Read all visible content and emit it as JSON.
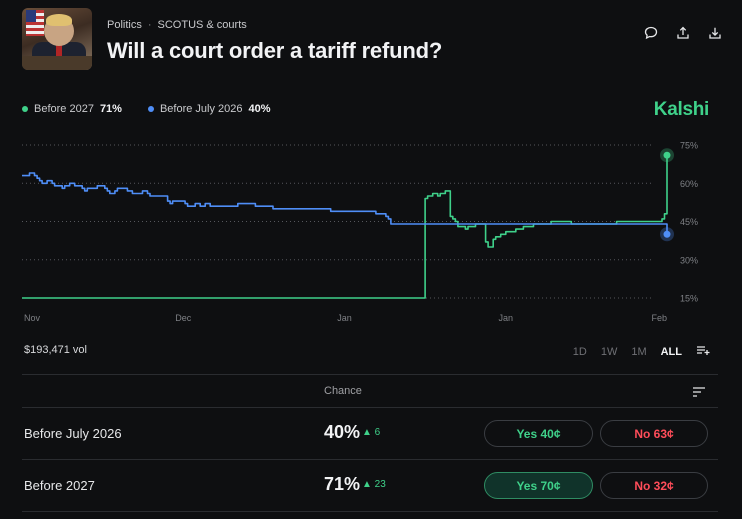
{
  "header": {
    "crumb_category": "Politics",
    "crumb_separator": "·",
    "crumb_subcategory": "SCOTUS & courts",
    "title": "Will a court order a tariff refund?",
    "actions": [
      "comment-icon",
      "share-icon",
      "download-icon"
    ]
  },
  "legend": {
    "items": [
      {
        "label": "Before 2027",
        "value": "71%",
        "color": "#3fd18a"
      },
      {
        "label": "Before July 2026",
        "value": "40%",
        "color": "#4f8ef7"
      }
    ]
  },
  "brand": "Kalshi",
  "chart_data": {
    "type": "line",
    "x_tick_labels": [
      "Nov",
      "Dec",
      "Jan",
      "Jan",
      "Feb"
    ],
    "y_tick_labels": [
      "75%",
      "60%",
      "45%",
      "30%",
      "15%"
    ],
    "ylim": [
      15,
      75
    ],
    "grid": true,
    "legend_position": "top-left",
    "series": [
      {
        "name": "Before 2027",
        "color": "#3fd18a",
        "values": [
          15,
          15,
          15,
          15,
          15,
          15,
          15,
          15,
          15,
          15,
          15,
          15,
          15,
          15,
          15,
          15,
          15,
          15,
          15,
          15,
          15,
          15,
          15,
          15,
          15,
          15,
          15,
          15,
          15,
          15,
          15,
          15,
          15,
          15,
          15,
          15,
          15,
          15,
          15,
          15,
          15,
          15,
          15,
          15,
          15,
          15,
          15,
          15,
          15,
          15,
          15,
          15,
          15,
          15,
          15,
          15,
          15,
          15,
          15,
          15,
          15,
          15,
          15,
          15,
          15,
          15,
          15,
          15,
          15,
          15,
          15,
          15,
          15,
          15,
          15,
          15,
          15,
          15,
          15,
          15,
          15,
          15,
          15,
          15,
          15,
          15,
          15,
          15,
          15,
          15,
          15,
          15,
          15,
          15,
          15,
          15,
          15,
          15,
          15,
          15,
          15,
          15,
          15,
          15,
          15,
          15,
          15,
          15,
          15,
          15,
          15,
          15,
          15,
          15,
          15,
          15,
          15,
          15,
          15,
          15,
          15,
          15,
          15,
          15,
          15,
          15,
          15,
          15,
          15,
          15,
          15,
          15,
          15,
          15,
          15,
          15,
          15,
          15,
          15,
          15,
          15,
          15,
          15,
          15,
          15,
          15,
          15,
          15,
          15,
          15,
          15,
          15,
          15,
          15,
          15,
          15,
          15,
          15,
          15,
          15,
          54,
          55,
          55,
          56,
          56,
          55,
          56,
          56,
          57,
          57,
          47,
          46,
          45,
          43,
          43,
          43,
          42,
          43,
          43,
          43,
          44,
          44,
          44,
          44,
          37,
          35,
          35,
          38,
          39,
          39,
          40,
          40,
          41,
          41,
          41,
          41,
          42,
          42,
          42,
          43,
          43,
          43,
          43,
          44,
          44,
          44,
          44,
          44,
          44,
          44,
          45,
          45,
          45,
          45,
          45,
          45,
          45,
          45,
          44,
          44,
          44,
          44,
          44,
          44,
          44,
          44,
          44,
          44,
          44,
          44,
          44,
          44,
          44,
          44,
          44,
          44,
          45,
          45,
          45,
          45,
          45,
          45,
          45,
          45,
          45,
          45,
          45,
          45,
          45,
          45,
          45,
          45,
          45,
          45,
          46,
          48,
          71
        ]
      },
      {
        "name": "Before July 2026",
        "color": "#4f8ef7",
        "values": [
          63,
          63,
          63,
          64,
          64,
          63,
          62,
          61,
          60,
          60,
          61,
          61,
          60,
          59,
          59,
          59,
          58,
          59,
          59,
          60,
          60,
          59,
          59,
          59,
          58,
          57,
          58,
          58,
          58,
          58,
          59,
          59,
          59,
          58,
          57,
          56,
          56,
          57,
          58,
          58,
          58,
          58,
          57,
          57,
          56,
          56,
          56,
          56,
          57,
          57,
          56,
          55,
          55,
          55,
          55,
          55,
          55,
          55,
          53,
          52,
          53,
          53,
          53,
          53,
          53,
          52,
          51,
          51,
          51,
          52,
          52,
          51,
          51,
          52,
          52,
          51,
          51,
          51,
          51,
          51,
          51,
          51,
          51,
          51,
          51,
          51,
          52,
          52,
          52,
          52,
          52,
          52,
          52,
          51,
          51,
          51,
          51,
          51,
          51,
          51,
          50,
          50,
          50,
          50,
          50,
          50,
          50,
          50,
          50,
          50,
          50,
          50,
          50,
          50,
          50,
          50,
          50,
          50,
          50,
          50,
          50,
          50,
          50,
          49,
          49,
          49,
          49,
          49,
          49,
          49,
          49,
          49,
          49,
          49,
          49,
          49,
          49,
          49,
          49,
          49,
          49,
          48,
          48,
          48,
          48,
          47,
          46,
          44,
          44,
          44,
          44,
          44,
          44,
          44,
          44,
          44,
          44,
          44,
          44,
          44,
          44,
          44,
          44,
          44,
          44,
          44,
          44,
          44,
          44,
          44,
          44,
          44,
          44,
          44,
          44,
          44,
          44,
          44,
          44,
          44,
          44,
          44,
          44,
          44,
          44,
          44,
          44,
          44,
          44,
          44,
          44,
          44,
          44,
          44,
          44,
          44,
          44,
          44,
          44,
          44,
          44,
          44,
          44,
          44,
          44,
          44,
          44,
          44,
          44,
          44,
          44,
          44,
          44,
          44,
          44,
          44,
          44,
          44,
          44,
          44,
          44,
          44,
          44,
          44,
          44,
          44,
          44,
          44,
          44,
          44,
          44,
          44,
          44,
          44,
          44,
          44,
          44,
          44,
          44,
          44,
          44,
          44,
          44,
          44,
          44,
          44,
          44,
          44,
          44,
          44,
          44,
          44,
          44,
          44,
          44,
          44,
          44,
          40
        ]
      }
    ]
  },
  "stats": {
    "volume": "$193,471 vol"
  },
  "ranges": [
    {
      "label": "1D",
      "active": false
    },
    {
      "label": "1W",
      "active": false
    },
    {
      "label": "1M",
      "active": false
    },
    {
      "label": "ALL",
      "active": true
    }
  ],
  "table": {
    "chance_header": "Chance",
    "rows": [
      {
        "name": "Before July 2026",
        "chance": "40%",
        "change": "▲ 6",
        "yes": "Yes 40¢",
        "no": "No 63¢",
        "yes_selected": false
      },
      {
        "name": "Before 2027",
        "chance": "71%",
        "change": "▲ 23",
        "yes": "Yes 70¢",
        "no": "No 32¢",
        "yes_selected": true
      }
    ]
  }
}
